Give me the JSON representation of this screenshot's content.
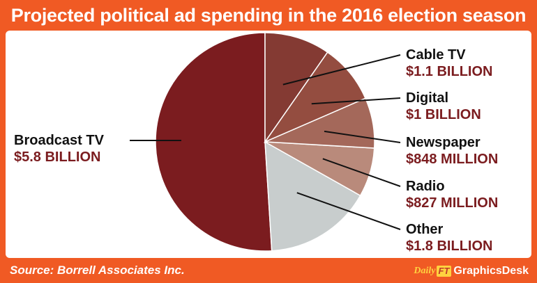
{
  "title": "Projected political ad spending in the 2016 election season",
  "source": "Source: Borrell Associates Inc.",
  "brand": {
    "daily": "Daily",
    "ft": "FT",
    "desk": "GraphicsDesk"
  },
  "chart_data": {
    "type": "pie",
    "slices": [
      {
        "label": "Broadcast TV",
        "value_label": "$5.8 BILLION",
        "value": 5.8,
        "color": "#7b1c1f"
      },
      {
        "label": "Other",
        "value_label": "$1.8 BILLION",
        "value": 1.8,
        "color": "#c8cdcd"
      },
      {
        "label": "Radio",
        "value_label": "$827 MILLION",
        "value": 0.827,
        "color": "#b98a7b"
      },
      {
        "label": "Newspaper",
        "value_label": "$848 MILLION",
        "value": 0.848,
        "color": "#a4685a"
      },
      {
        "label": "Digital",
        "value_label": "$1 BILLION",
        "value": 1.0,
        "color": "#944d40"
      },
      {
        "label": "Cable TV",
        "value_label": "$1.1 BILLION",
        "value": 1.1,
        "color": "#843a33"
      }
    ],
    "label_color": "#111111",
    "value_color": "#7b1c1f"
  }
}
